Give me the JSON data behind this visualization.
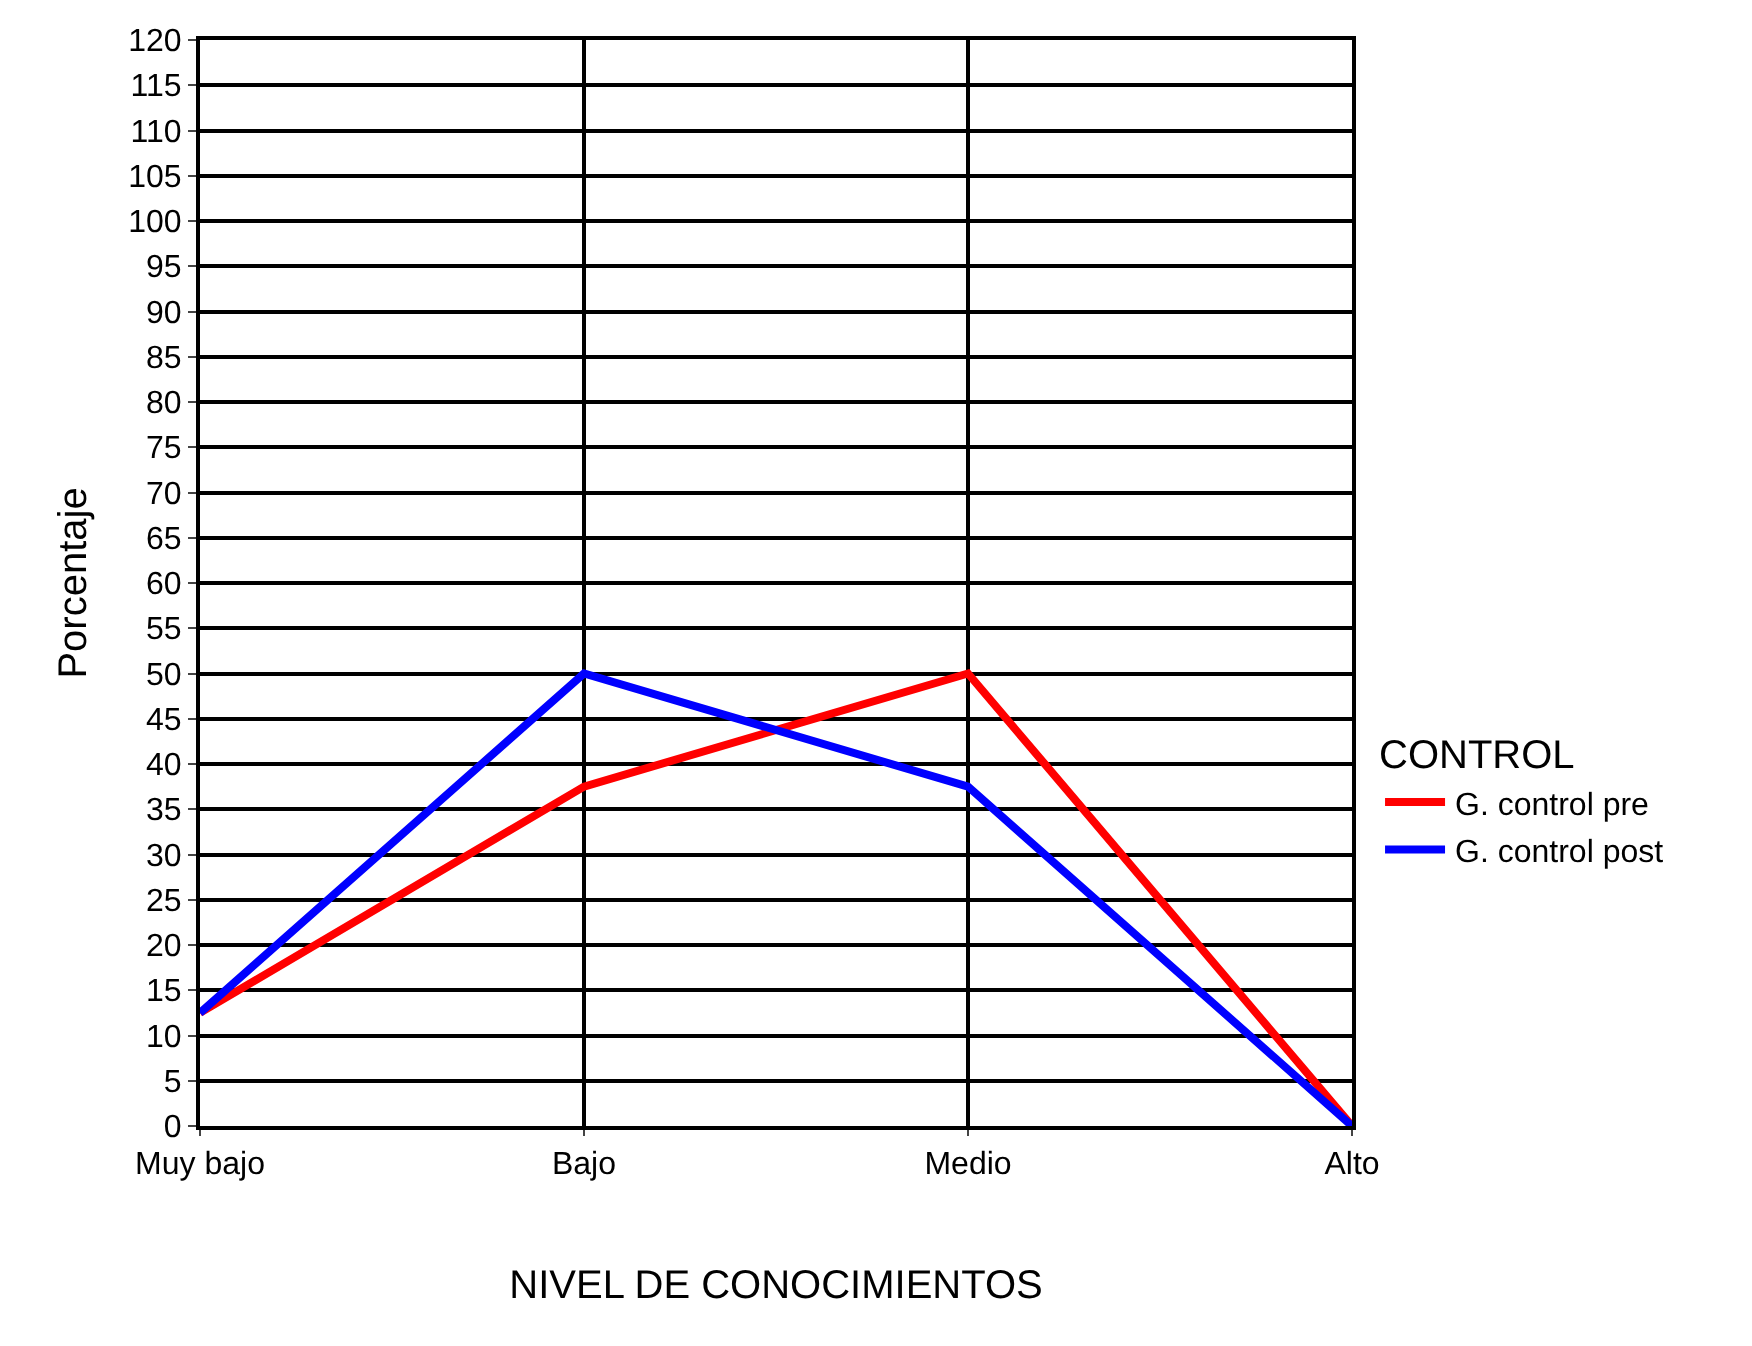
{
  "chart_data": {
    "type": "line",
    "xlabel": "NIVEL DE CONOCIMIENTOS",
    "ylabel": "Porcentaje",
    "legend_title": "CONTROL",
    "categories": [
      "Muy bajo",
      "Bajo",
      "Medio",
      "Alto"
    ],
    "series": [
      {
        "name": "G. control pre",
        "color": "#ff0000",
        "values": [
          12.5,
          37.5,
          50,
          0
        ]
      },
      {
        "name": "G. control post",
        "color": "#0000ff",
        "values": [
          12.5,
          50,
          37.5,
          0
        ]
      }
    ],
    "ylim": [
      0,
      120
    ],
    "yticks": [
      0,
      5,
      10,
      15,
      20,
      25,
      30,
      35,
      40,
      45,
      50,
      55,
      60,
      65,
      70,
      75,
      80,
      85,
      90,
      95,
      100,
      105,
      110,
      115,
      120
    ],
    "grid": true,
    "legend": "right",
    "marker": "none",
    "line_style": "solid"
  }
}
